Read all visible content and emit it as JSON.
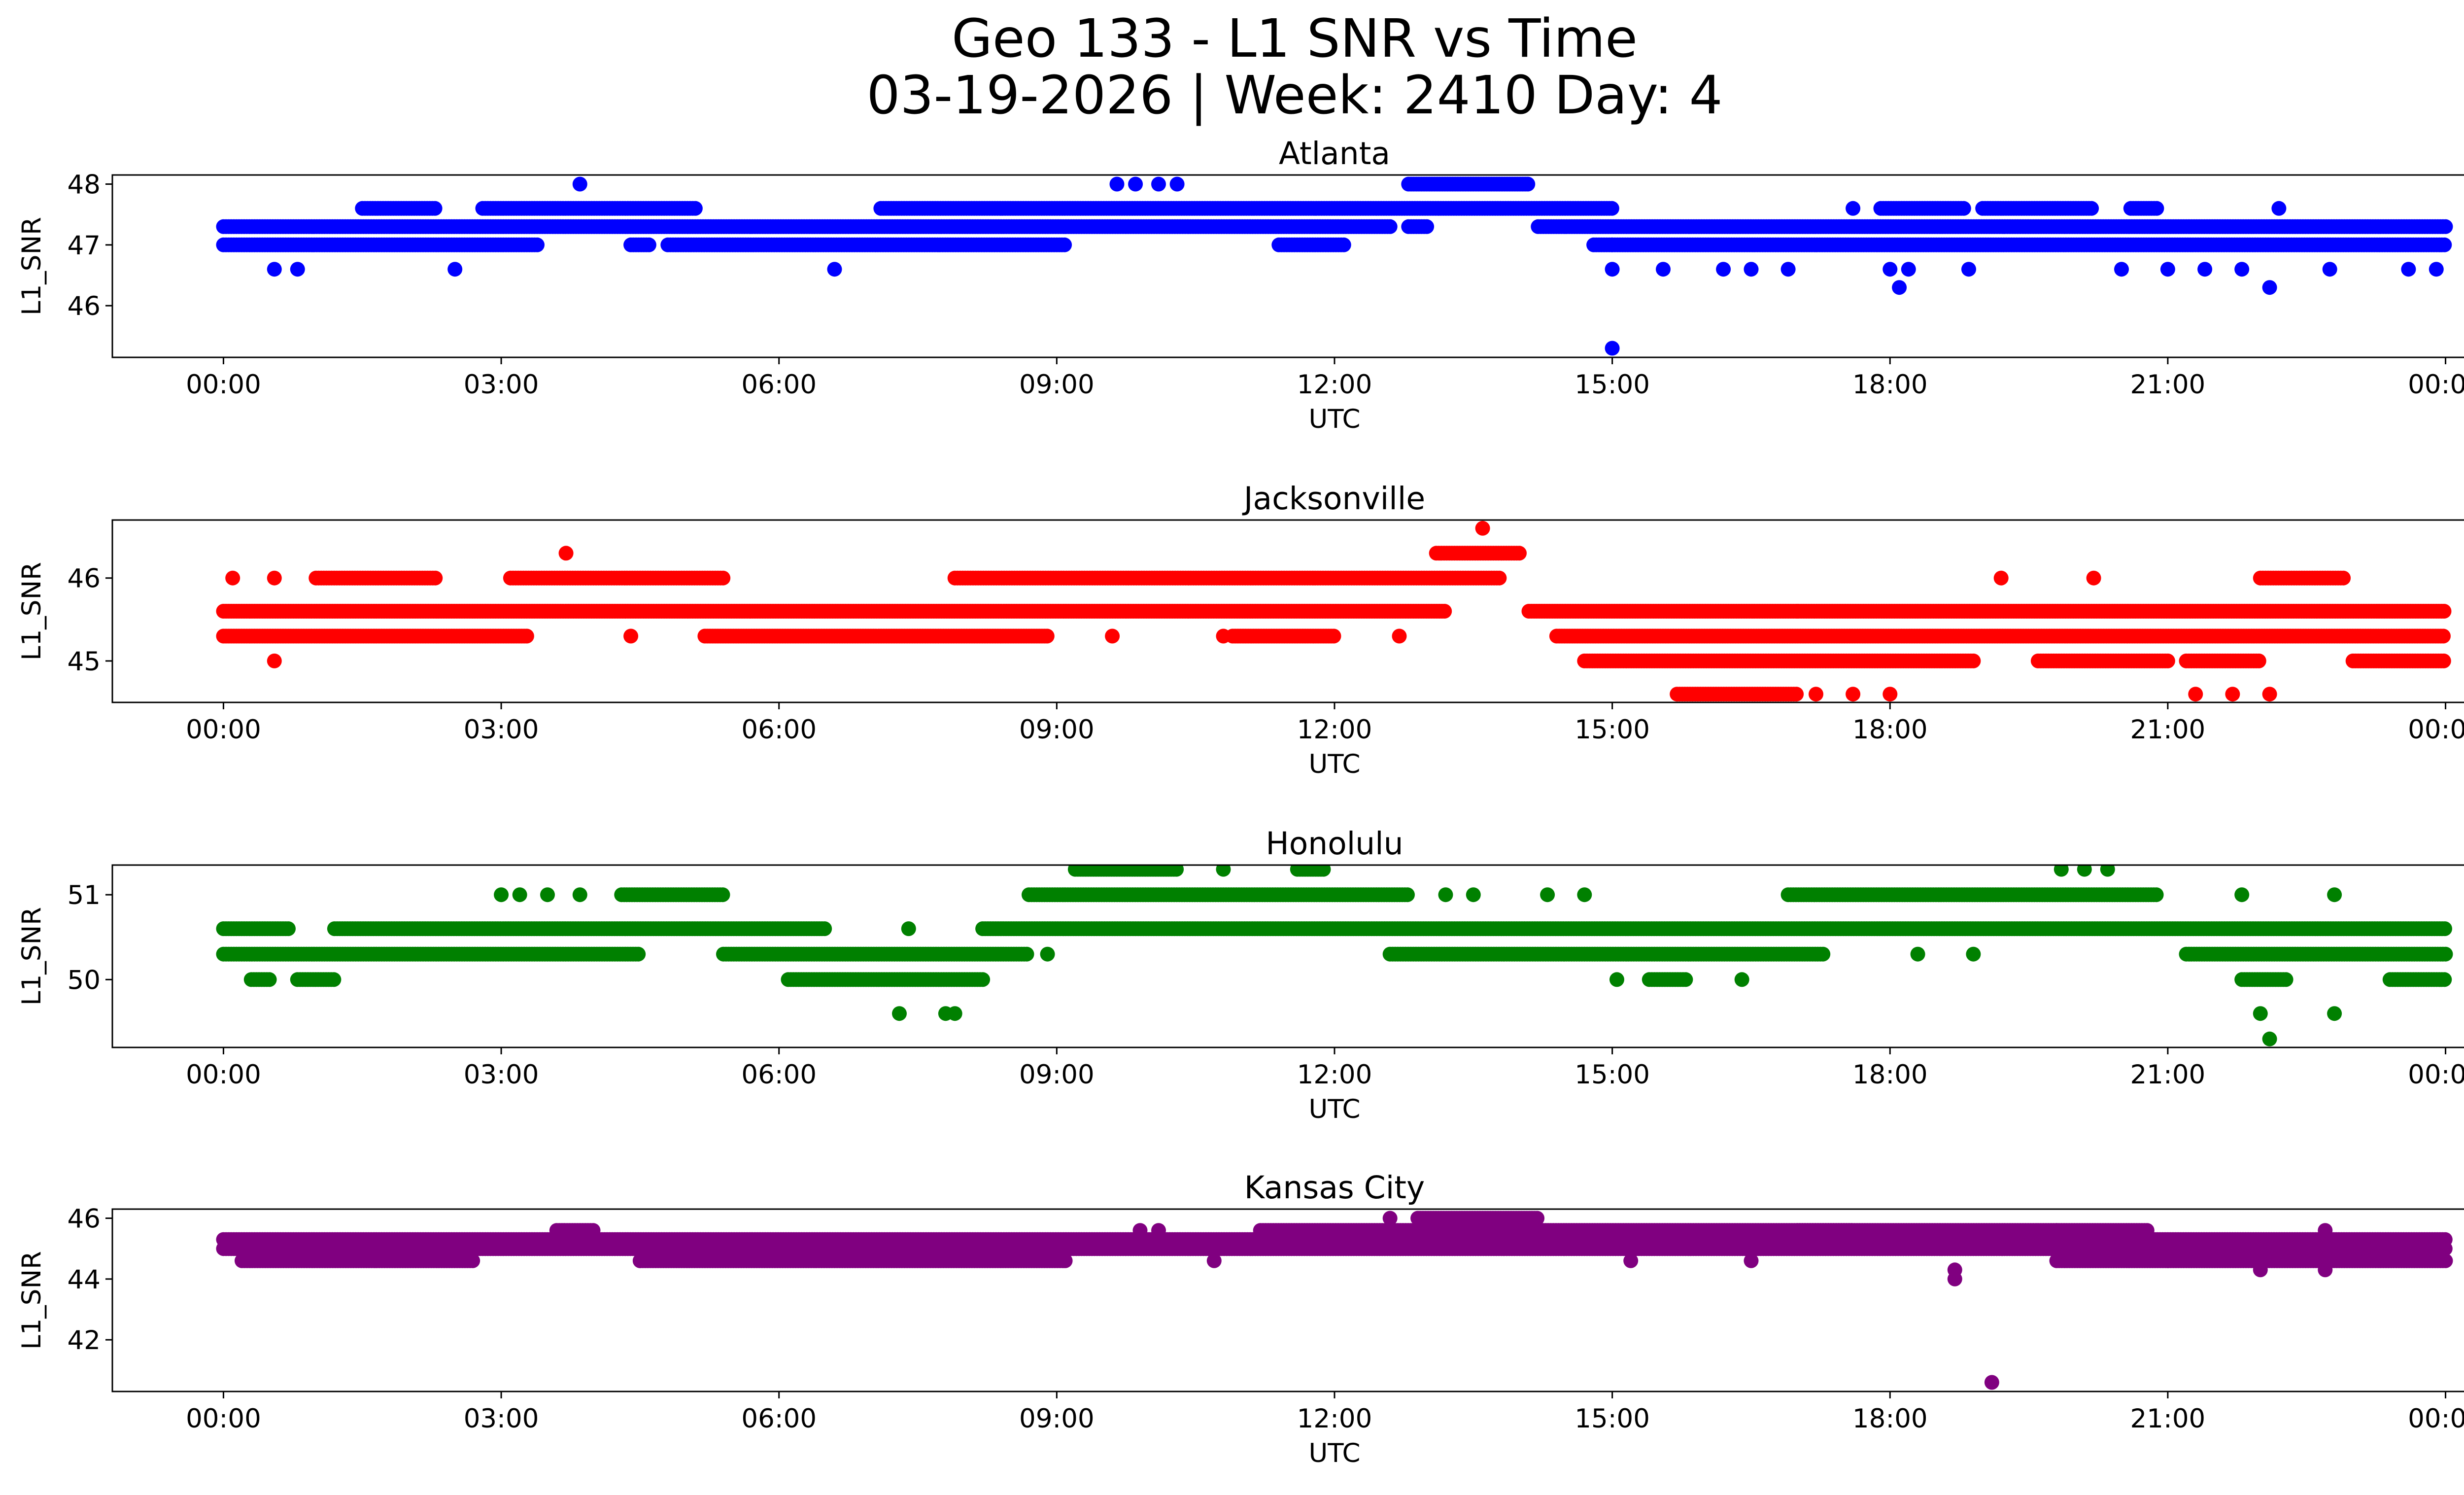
{
  "chart_data": {
    "type": "scatter",
    "title_line1": "Geo 133 - L1 SNR vs Time",
    "title_line2": "03-19-2026 | Week: 2410 Day: 4",
    "x_tick_labels": [
      "00:00",
      "03:00",
      "06:00",
      "09:00",
      "12:00",
      "15:00",
      "18:00",
      "21:00",
      "00:00"
    ],
    "x_domain_hours": [
      -1.2,
      25.2
    ],
    "panels": [
      {
        "title": "Atlanta",
        "color": "#0000ff",
        "xlabel": "UTC",
        "ylabel": "L1_SNR",
        "ylim": [
          45.15,
          48.15
        ],
        "yticks": [
          46,
          47,
          48
        ],
        "bands": [
          {
            "value": 47.3,
            "ranges": [
              [
                0.0,
                12.6
              ],
              [
                12.8,
                13.0
              ],
              [
                14.2,
                24.0
              ]
            ]
          },
          {
            "value": 47.0,
            "ranges": [
              [
                0.0,
                3.4
              ],
              [
                4.4,
                4.6
              ],
              [
                4.8,
                9.1
              ],
              [
                11.4,
                12.1
              ],
              [
                14.8,
                15.0
              ],
              [
                15.0,
                24.0
              ]
            ]
          },
          {
            "value": 47.6,
            "ranges": [
              [
                1.5,
                2.3
              ],
              [
                2.8,
                5.1
              ],
              [
                7.1,
                15.0
              ],
              [
                17.9,
                18.8
              ],
              [
                19.0,
                20.2
              ],
              [
                20.6,
                20.9
              ]
            ]
          },
          {
            "value": 48.0,
            "ranges": [
              [
                12.8,
                14.1
              ]
            ]
          }
        ],
        "points": [
          [
            0.55,
            46.6
          ],
          [
            0.8,
            46.6
          ],
          [
            2.5,
            46.6
          ],
          [
            3.85,
            48.0
          ],
          [
            6.6,
            46.6
          ],
          [
            9.65,
            48.0
          ],
          [
            9.85,
            48.0
          ],
          [
            10.1,
            48.0
          ],
          [
            10.3,
            48.0
          ],
          [
            17.6,
            47.6
          ],
          [
            18.0,
            46.6
          ],
          [
            18.1,
            46.3
          ],
          [
            18.2,
            46.6
          ],
          [
            18.85,
            46.6
          ],
          [
            15.0,
            46.6
          ],
          [
            15.55,
            46.6
          ],
          [
            16.2,
            46.6
          ],
          [
            16.5,
            46.6
          ],
          [
            16.9,
            46.6
          ],
          [
            20.5,
            46.6
          ],
          [
            21.0,
            46.6
          ],
          [
            21.4,
            46.6
          ],
          [
            21.8,
            46.6
          ],
          [
            22.1,
            46.3
          ],
          [
            22.2,
            47.6
          ],
          [
            22.75,
            46.6
          ],
          [
            23.6,
            46.6
          ],
          [
            23.9,
            46.6
          ],
          [
            15.0,
            45.3
          ]
        ]
      },
      {
        "title": "Jacksonville",
        "color": "#ff0000",
        "xlabel": "UTC",
        "ylabel": "L1_SNR",
        "ylim": [
          44.5,
          46.7
        ],
        "yticks": [
          45,
          46
        ],
        "bands": [
          {
            "value": 45.6,
            "ranges": [
              [
                0.0,
                13.2
              ],
              [
                14.1,
                24.0
              ]
            ]
          },
          {
            "value": 45.3,
            "ranges": [
              [
                0.0,
                3.3
              ],
              [
                5.2,
                8.9
              ],
              [
                10.9,
                12.0
              ],
              [
                14.4,
                24.0
              ]
            ]
          },
          {
            "value": 46.0,
            "ranges": [
              [
                1.0,
                2.3
              ],
              [
                3.1,
                5.4
              ],
              [
                7.9,
                13.8
              ],
              [
                22.0,
                22.9
              ]
            ]
          },
          {
            "value": 46.3,
            "ranges": [
              [
                13.1,
                14.0
              ]
            ]
          },
          {
            "value": 45.0,
            "ranges": [
              [
                14.7,
                18.9
              ],
              [
                19.6,
                21.0
              ],
              [
                21.2,
                22.0
              ],
              [
                23.0,
                24.0
              ]
            ]
          },
          {
            "value": 44.6,
            "ranges": [
              [
                15.7,
                17.0
              ]
            ]
          }
        ],
        "points": [
          [
            0.1,
            46.0
          ],
          [
            0.55,
            46.0
          ],
          [
            0.55,
            45.0
          ],
          [
            3.7,
            46.3
          ],
          [
            4.4,
            45.3
          ],
          [
            9.6,
            45.3
          ],
          [
            10.8,
            45.3
          ],
          [
            12.7,
            45.3
          ],
          [
            13.6,
            46.6
          ],
          [
            17.2,
            44.6
          ],
          [
            17.6,
            44.6
          ],
          [
            18.0,
            44.6
          ],
          [
            19.2,
            46.0
          ],
          [
            20.2,
            46.0
          ],
          [
            21.3,
            44.6
          ],
          [
            21.7,
            44.6
          ],
          [
            22.1,
            44.6
          ],
          [
            17.0,
            45.6
          ]
        ]
      },
      {
        "title": "Honolulu",
        "color": "#008000",
        "xlabel": "UTC",
        "ylabel": "L1_SNR",
        "ylim": [
          49.2,
          51.35
        ],
        "yticks": [
          50,
          51
        ],
        "bands": [
          {
            "value": 50.6,
            "ranges": [
              [
                0.0,
                0.7
              ],
              [
                1.2,
                6.5
              ],
              [
                8.2,
                24.0
              ]
            ]
          },
          {
            "value": 50.3,
            "ranges": [
              [
                0.0,
                4.5
              ],
              [
                5.4,
                8.7
              ],
              [
                12.6,
                17.3
              ],
              [
                21.2,
                24.0
              ]
            ]
          },
          {
            "value": 51.0,
            "ranges": [
              [
                4.3,
                5.4
              ],
              [
                8.7,
                12.8
              ],
              [
                16.9,
                20.9
              ]
            ]
          },
          {
            "value": 50.0,
            "ranges": [
              [
                0.3,
                0.5
              ],
              [
                0.8,
                1.2
              ],
              [
                6.1,
                8.2
              ],
              [
                15.4,
                15.8
              ],
              [
                21.8,
                22.3
              ],
              [
                23.4,
                24.0
              ]
            ]
          },
          {
            "value": 51.3,
            "ranges": [
              [
                9.2,
                10.3
              ],
              [
                11.6,
                11.9
              ]
            ]
          }
        ],
        "points": [
          [
            3.0,
            51.0
          ],
          [
            3.2,
            51.0
          ],
          [
            3.5,
            51.0
          ],
          [
            3.85,
            51.0
          ],
          [
            7.3,
            49.6
          ],
          [
            7.8,
            49.6
          ],
          [
            7.9,
            49.6
          ],
          [
            8.9,
            50.3
          ],
          [
            10.8,
            51.3
          ],
          [
            13.2,
            51.0
          ],
          [
            13.5,
            51.0
          ],
          [
            14.3,
            51.0
          ],
          [
            14.7,
            51.0
          ],
          [
            15.05,
            50.0
          ],
          [
            16.4,
            50.0
          ],
          [
            19.85,
            51.3
          ],
          [
            20.1,
            51.3
          ],
          [
            20.35,
            51.3
          ],
          [
            21.8,
            51.0
          ],
          [
            22.0,
            49.6
          ],
          [
            22.1,
            49.3
          ],
          [
            22.8,
            51.0
          ],
          [
            22.8,
            49.6
          ],
          [
            18.3,
            50.3
          ],
          [
            18.9,
            50.3
          ],
          [
            7.4,
            50.6
          ]
        ]
      },
      {
        "title": "Kansas City",
        "color": "#800080",
        "xlabel": "UTC",
        "ylabel": "L1_SNR",
        "ylim": [
          40.3,
          46.3
        ],
        "yticks": [
          42,
          44,
          46
        ],
        "bands": [
          {
            "value": 45.3,
            "ranges": [
              [
                0.0,
                24.0
              ]
            ]
          },
          {
            "value": 45.0,
            "ranges": [
              [
                0.0,
                24.0
              ]
            ]
          },
          {
            "value": 44.6,
            "ranges": [
              [
                0.2,
                2.7
              ],
              [
                4.5,
                9.1
              ],
              [
                19.8,
                24.0
              ]
            ]
          },
          {
            "value": 45.6,
            "ranges": [
              [
                3.6,
                4.0
              ],
              [
                11.2,
                17.6
              ],
              [
                17.0,
                19.6
              ],
              [
                19.6,
                20.8
              ]
            ]
          },
          {
            "value": 46.0,
            "ranges": [
              [
                12.9,
                14.2
              ]
            ]
          }
        ],
        "points": [
          [
            4.5,
            44.6
          ],
          [
            9.9,
            45.6
          ],
          [
            10.1,
            45.6
          ],
          [
            10.7,
            44.6
          ],
          [
            12.6,
            46.0
          ],
          [
            13.0,
            45.3
          ],
          [
            15.2,
            44.6
          ],
          [
            16.5,
            44.6
          ],
          [
            18.7,
            44.3
          ],
          [
            18.7,
            44.0
          ],
          [
            19.1,
            45.3
          ],
          [
            19.1,
            40.6
          ],
          [
            19.8,
            45.6
          ],
          [
            21.0,
            44.6
          ],
          [
            22.0,
            44.3
          ],
          [
            22.7,
            44.3
          ],
          [
            22.7,
            45.6
          ]
        ]
      }
    ]
  }
}
